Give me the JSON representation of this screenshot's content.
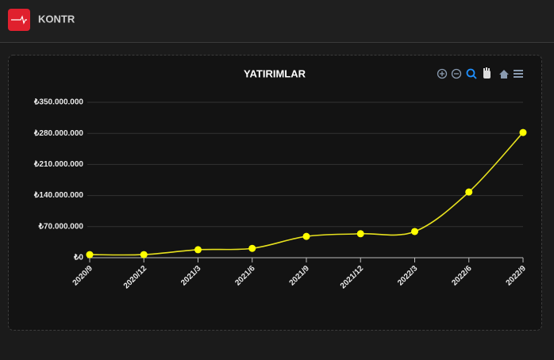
{
  "header": {
    "title": "KONTR"
  },
  "chart_data": {
    "type": "line",
    "title": "YATIRIMLAR",
    "categories": [
      "2020/9",
      "2020/12",
      "2021/3",
      "2021/6",
      "2021/9",
      "2021/12",
      "2022/3",
      "2022/6",
      "2022/9"
    ],
    "values": [
      7000000,
      7000000,
      18000000,
      21000000,
      48000000,
      54000000,
      59000000,
      148000000,
      282000000
    ],
    "color": "#e6e01e",
    "ylim": [
      0,
      350000000
    ],
    "yticks": [
      {
        "value": 0,
        "label": "₺0"
      },
      {
        "value": 70000000,
        "label": "₺70.000.000"
      },
      {
        "value": 140000000,
        "label": "₺140.000.000"
      },
      {
        "value": 210000000,
        "label": "₺210.000.000"
      },
      {
        "value": 280000000,
        "label": "₺280.000.000"
      },
      {
        "value": 350000000,
        "label": "₺350.000.000"
      }
    ],
    "grid": true
  }
}
